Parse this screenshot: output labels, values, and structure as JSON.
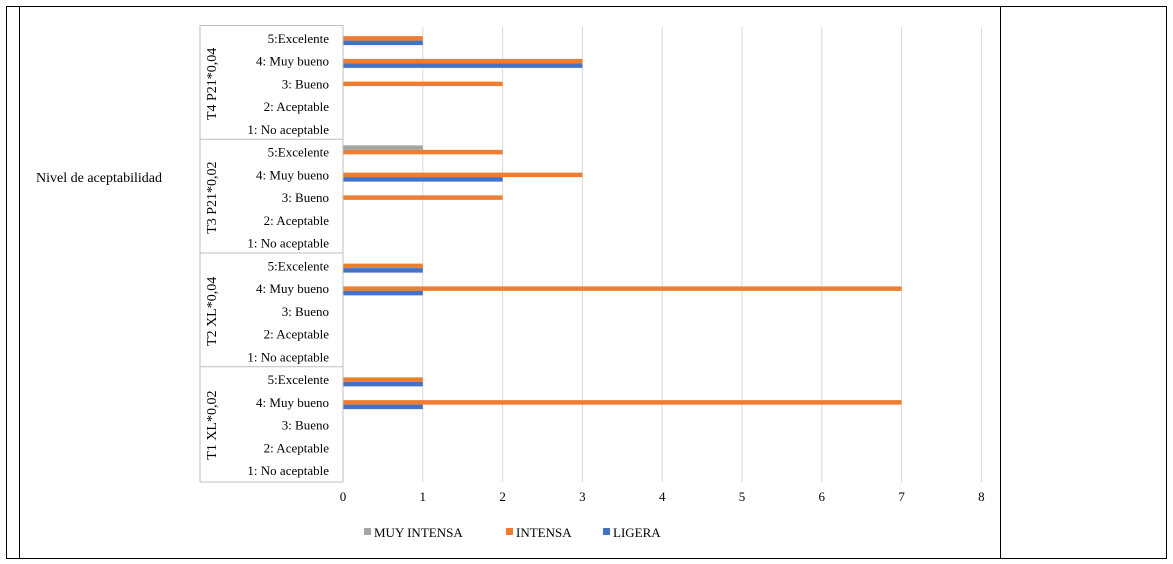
{
  "chart_data": {
    "type": "bar",
    "orientation": "horizontal",
    "title": "",
    "xlabel": "",
    "ylabel": "Nivel de aceptabilidad",
    "xlim": [
      0,
      8
    ],
    "x_ticks": [
      "0",
      "1",
      "2",
      "3",
      "4",
      "5",
      "6",
      "7",
      "8"
    ],
    "grid": true,
    "legend_position": "bottom",
    "groups": [
      {
        "label": "T4 P21*0,04",
        "categories": [
          "5:Excelente",
          "4: Muy bueno",
          "3: Bueno",
          "2: Aceptable",
          "1: No aceptable"
        ],
        "MUY INTENSA": [
          0,
          0,
          0,
          0,
          0
        ],
        "INTENSA": [
          1,
          3,
          2,
          0,
          0
        ],
        "LIGERA": [
          1,
          3,
          0,
          0,
          0
        ]
      },
      {
        "label": "T3 P21*0,02",
        "categories": [
          "5:Excelente",
          "4: Muy bueno",
          "3: Bueno",
          "2: Aceptable",
          "1: No aceptable"
        ],
        "MUY INTENSA": [
          1,
          0,
          0,
          0,
          0
        ],
        "INTENSA": [
          2,
          3,
          2,
          0,
          0
        ],
        "LIGERA": [
          0,
          2,
          0,
          0,
          0
        ]
      },
      {
        "label": "T2 XL*0,04",
        "categories": [
          "5:Excelente",
          "4: Muy bueno",
          "3: Bueno",
          "2: Aceptable",
          "1: No aceptable"
        ],
        "MUY INTENSA": [
          0,
          0,
          0,
          0,
          0
        ],
        "INTENSA": [
          1,
          7,
          0,
          0,
          0
        ],
        "LIGERA": [
          1,
          1,
          0,
          0,
          0
        ]
      },
      {
        "label": "T1 XL*0,02",
        "categories": [
          "5:Excelente",
          "4: Muy bueno",
          "3: Bueno",
          "2: Aceptable",
          "1: No aceptable"
        ],
        "MUY INTENSA": [
          0,
          0,
          0,
          0,
          0
        ],
        "INTENSA": [
          1,
          7,
          0,
          0,
          0
        ],
        "LIGERA": [
          1,
          1,
          0,
          0,
          0
        ]
      }
    ],
    "series": [
      {
        "name": "MUY INTENSA",
        "color": "#a5a5a5"
      },
      {
        "name": "INTENSA",
        "color": "#ed7d31"
      },
      {
        "name": "LIGERA",
        "color": "#4472c4"
      }
    ]
  }
}
